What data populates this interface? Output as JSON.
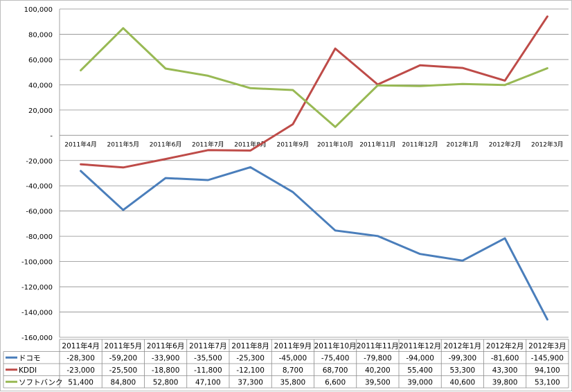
{
  "chart_data": {
    "type": "line",
    "categories": [
      "2011年4月",
      "2011年5月",
      "2011年6月",
      "2011年7月",
      "2011年8月",
      "2011年9月",
      "2011年10月",
      "2011年11月",
      "2011年12月",
      "2012年1月",
      "2012年2月",
      "2012年3月"
    ],
    "series": [
      {
        "name": "ドコモ",
        "color": "#4a7ebb",
        "values": [
          -28300,
          -59200,
          -33900,
          -35500,
          -25300,
          -45000,
          -75400,
          -79800,
          -94000,
          -99300,
          -81600,
          -145900
        ],
        "labels": [
          "-28,300",
          "-59,200",
          "-33,900",
          "-35,500",
          "-25,300",
          "-45,000",
          "-75,400",
          "-79,800",
          "-94,000",
          "-99,300",
          "-81,600",
          "-145,900"
        ]
      },
      {
        "name": "KDDI",
        "color": "#be4b48",
        "values": [
          -23000,
          -25500,
          -18800,
          -11800,
          -12100,
          8700,
          68700,
          40200,
          55400,
          53300,
          43300,
          94100
        ],
        "labels": [
          "-23,000",
          "-25,500",
          "-18,800",
          "-11,800",
          "-12,100",
          "8,700",
          "68,700",
          "40,200",
          "55,400",
          "53,300",
          "43,300",
          "94,100"
        ]
      },
      {
        "name": "ソフトバンク",
        "color": "#98b954",
        "values": [
          51400,
          84800,
          52800,
          47100,
          37300,
          35800,
          6600,
          39500,
          39000,
          40600,
          39800,
          53100
        ],
        "labels": [
          "51,400",
          "84,800",
          "52,800",
          "47,100",
          "37,300",
          "35,800",
          "6,600",
          "39,500",
          "39,000",
          "40,600",
          "39,800",
          "53,100"
        ]
      }
    ],
    "ylim": [
      -160000,
      100000
    ],
    "yticks": [
      100000,
      80000,
      60000,
      40000,
      20000,
      0,
      -20000,
      -40000,
      -60000,
      -80000,
      -100000,
      -120000,
      -140000,
      -160000
    ],
    "ytick_labels": [
      "100,000",
      "80,000",
      "60,000",
      "40,000",
      "20,000",
      "-",
      "-20,000",
      "-40,000",
      "-60,000",
      "-80,000",
      "-100,000",
      "-120,000",
      "-140,000",
      "-160,000"
    ],
    "grid": true,
    "legend": "data-table"
  }
}
